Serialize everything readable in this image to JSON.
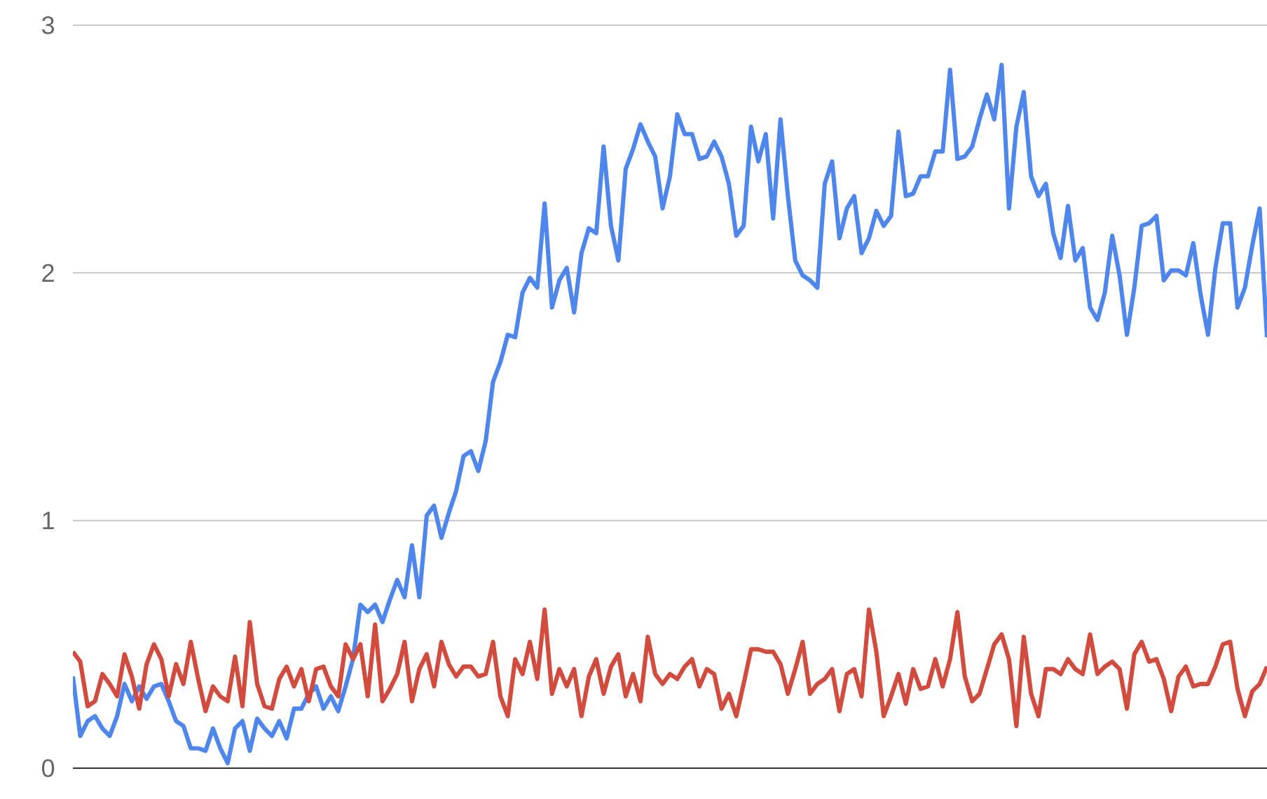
{
  "chart_data": {
    "type": "line",
    "categories": [
      null,
      null,
      null,
      null,
      null,
      null,
      null,
      null,
      null,
      null,
      null,
      null,
      null,
      null,
      null,
      null,
      null,
      null,
      null,
      null,
      null,
      null,
      null,
      null,
      null,
      null,
      null,
      null,
      null,
      null,
      null,
      null,
      null,
      null,
      null,
      null,
      null,
      null,
      null,
      null,
      null,
      null,
      null,
      null,
      null,
      null,
      null,
      null,
      null,
      null,
      null,
      null,
      null,
      null,
      null,
      null,
      null,
      null,
      null,
      null,
      null,
      null,
      null,
      null,
      null,
      null,
      null,
      null,
      null,
      null,
      null,
      null,
      null,
      null,
      null,
      null,
      null,
      null,
      null,
      null,
      null,
      null,
      null,
      null,
      null,
      null,
      null,
      null,
      null,
      null,
      null,
      null,
      null,
      null,
      null,
      null,
      null,
      null,
      null,
      null,
      null,
      null,
      null,
      null,
      null,
      null,
      null,
      null,
      null,
      null,
      null,
      null,
      null,
      null,
      null,
      null,
      null,
      null,
      null,
      null,
      null,
      null,
      null,
      null,
      null,
      null,
      null,
      null,
      null,
      null,
      null,
      null,
      null,
      null,
      null,
      null,
      null,
      null,
      null,
      null,
      null,
      null,
      null,
      null,
      null,
      null,
      null,
      null,
      null,
      null,
      null,
      null,
      null,
      null,
      null,
      null,
      null,
      null,
      null,
      null,
      null,
      null,
      null
    ],
    "series": [
      {
        "color": "#4f86ec",
        "values": [
          0.37,
          0.13,
          0.19,
          0.21,
          0.16,
          0.13,
          0.21,
          0.34,
          0.27,
          0.33,
          0.28,
          0.33,
          0.34,
          0.27,
          0.19,
          0.17,
          0.08,
          0.08,
          0.07,
          0.16,
          0.08,
          0.02,
          0.16,
          0.19,
          0.07,
          0.2,
          0.16,
          0.13,
          0.19,
          0.12,
          0.24,
          0.24,
          0.3,
          0.33,
          0.24,
          0.29,
          0.23,
          0.33,
          0.44,
          0.66,
          0.63,
          0.66,
          0.59,
          0.68,
          0.76,
          0.69,
          0.9,
          0.69,
          1.02,
          1.06,
          0.93,
          1.03,
          1.12,
          1.26,
          1.28,
          1.2,
          1.32,
          1.56,
          1.64,
          1.75,
          1.74,
          1.92,
          1.98,
          1.94,
          2.28,
          1.86,
          1.97,
          2.02,
          1.84,
          2.08,
          2.18,
          2.16,
          2.51,
          2.19,
          2.05,
          2.42,
          2.5,
          2.6,
          2.53,
          2.47,
          2.26,
          2.39,
          2.64,
          2.56,
          2.56,
          2.46,
          2.47,
          2.53,
          2.47,
          2.36,
          2.15,
          2.19,
          2.59,
          2.45,
          2.56,
          2.22,
          2.62,
          2.31,
          2.05,
          1.99,
          1.97,
          1.94,
          2.36,
          2.45,
          2.14,
          2.26,
          2.31,
          2.08,
          2.14,
          2.25,
          2.19,
          2.23,
          2.57,
          2.31,
          2.32,
          2.39,
          2.39,
          2.49,
          2.49,
          2.82,
          2.46,
          2.47,
          2.51,
          2.62,
          2.72,
          2.62,
          2.84,
          2.26,
          2.59,
          2.73,
          2.39,
          2.31,
          2.36,
          2.16,
          2.06,
          2.27,
          2.05,
          2.1,
          1.86,
          1.81,
          1.92,
          2.15,
          1.99,
          1.75,
          1.94,
          2.19,
          2.2,
          2.23,
          1.97,
          2.01,
          2.01,
          1.99,
          2.12,
          1.91,
          1.75,
          2.02,
          2.2,
          2.2,
          1.86,
          1.94,
          2.11,
          2.26,
          1.74
        ]
      },
      {
        "color": "#d14b3e",
        "values": [
          0.47,
          0.43,
          0.25,
          0.27,
          0.38,
          0.34,
          0.29,
          0.46,
          0.37,
          0.24,
          0.42,
          0.5,
          0.44,
          0.29,
          0.42,
          0.34,
          0.51,
          0.36,
          0.23,
          0.33,
          0.29,
          0.27,
          0.45,
          0.25,
          0.59,
          0.34,
          0.25,
          0.24,
          0.36,
          0.41,
          0.33,
          0.4,
          0.27,
          0.4,
          0.41,
          0.33,
          0.29,
          0.5,
          0.44,
          0.5,
          0.29,
          0.58,
          0.27,
          0.32,
          0.38,
          0.51,
          0.27,
          0.4,
          0.46,
          0.33,
          0.51,
          0.42,
          0.37,
          0.41,
          0.41,
          0.37,
          0.38,
          0.51,
          0.29,
          0.21,
          0.44,
          0.38,
          0.51,
          0.36,
          0.64,
          0.3,
          0.4,
          0.33,
          0.4,
          0.21,
          0.37,
          0.44,
          0.3,
          0.41,
          0.46,
          0.29,
          0.38,
          0.27,
          0.53,
          0.38,
          0.34,
          0.38,
          0.36,
          0.41,
          0.44,
          0.33,
          0.4,
          0.38,
          0.24,
          0.3,
          0.21,
          0.34,
          0.48,
          0.48,
          0.47,
          0.47,
          0.42,
          0.3,
          0.4,
          0.51,
          0.3,
          0.34,
          0.36,
          0.4,
          0.23,
          0.38,
          0.4,
          0.29,
          0.64,
          0.47,
          0.21,
          0.29,
          0.38,
          0.26,
          0.4,
          0.32,
          0.33,
          0.44,
          0.33,
          0.44,
          0.63,
          0.37,
          0.27,
          0.3,
          0.4,
          0.5,
          0.54,
          0.44,
          0.17,
          0.53,
          0.3,
          0.21,
          0.4,
          0.4,
          0.38,
          0.44,
          0.4,
          0.38,
          0.54,
          0.38,
          0.41,
          0.43,
          0.4,
          0.24,
          0.46,
          0.51,
          0.43,
          0.44,
          0.36,
          0.23,
          0.37,
          0.41,
          0.33,
          0.34,
          0.34,
          0.41,
          0.5,
          0.51,
          0.32,
          0.21,
          0.31,
          0.34,
          0.41
        ]
      }
    ],
    "ylim": [
      0,
      3
    ],
    "yticks": [
      0,
      1,
      2,
      3
    ],
    "grid": "y",
    "tick_labels": "y"
  }
}
